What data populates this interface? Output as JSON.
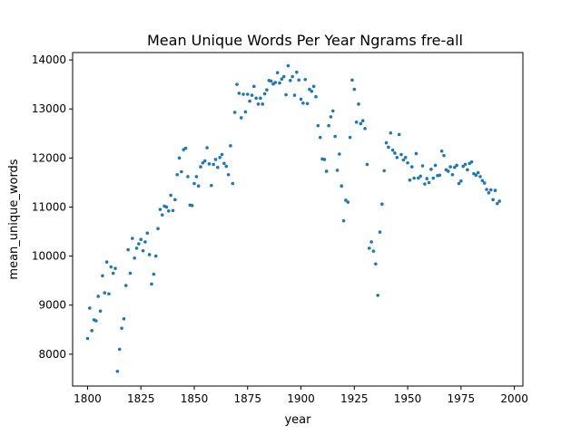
{
  "chart_data": {
    "type": "scatter",
    "title": "Mean Unique Words Per Year Ngrams fre-all",
    "xlabel": "year",
    "ylabel": "mean_unique_words",
    "xlim": [
      1793,
      2004
    ],
    "ylim": [
      7350,
      14150
    ],
    "xticks": [
      1800,
      1825,
      1850,
      1875,
      1900,
      1925,
      1950,
      1975,
      2000
    ],
    "yticks": [
      8000,
      9000,
      10000,
      11000,
      12000,
      13000,
      14000
    ],
    "grid": false,
    "marker_color": "#1f77b4",
    "points": [
      [
        1800,
        8320
      ],
      [
        1801,
        8940
      ],
      [
        1802,
        8480
      ],
      [
        1803,
        8700
      ],
      [
        1804,
        8680
      ],
      [
        1805,
        9180
      ],
      [
        1806,
        8880
      ],
      [
        1807,
        9600
      ],
      [
        1808,
        9250
      ],
      [
        1809,
        9880
      ],
      [
        1810,
        9230
      ],
      [
        1811,
        9780
      ],
      [
        1812,
        9650
      ],
      [
        1813,
        9750
      ],
      [
        1814,
        7650
      ],
      [
        1815,
        8100
      ],
      [
        1816,
        8530
      ],
      [
        1817,
        8720
      ],
      [
        1818,
        9400
      ],
      [
        1819,
        10130
      ],
      [
        1820,
        9650
      ],
      [
        1821,
        10360
      ],
      [
        1822,
        9960
      ],
      [
        1823,
        10160
      ],
      [
        1824,
        10250
      ],
      [
        1825,
        10340
      ],
      [
        1826,
        10110
      ],
      [
        1827,
        10290
      ],
      [
        1828,
        10470
      ],
      [
        1829,
        10030
      ],
      [
        1830,
        9430
      ],
      [
        1831,
        9630
      ],
      [
        1832,
        10000
      ],
      [
        1833,
        10560
      ],
      [
        1834,
        10950
      ],
      [
        1835,
        10840
      ],
      [
        1836,
        11020
      ],
      [
        1837,
        11000
      ],
      [
        1838,
        10920
      ],
      [
        1839,
        11240
      ],
      [
        1840,
        10930
      ],
      [
        1841,
        11150
      ],
      [
        1842,
        11660
      ],
      [
        1843,
        12000
      ],
      [
        1844,
        11720
      ],
      [
        1845,
        12170
      ],
      [
        1846,
        12200
      ],
      [
        1847,
        11620
      ],
      [
        1848,
        11040
      ],
      [
        1849,
        11030
      ],
      [
        1850,
        11480
      ],
      [
        1851,
        11620
      ],
      [
        1852,
        11430
      ],
      [
        1853,
        11820
      ],
      [
        1854,
        11900
      ],
      [
        1855,
        11940
      ],
      [
        1856,
        12210
      ],
      [
        1857,
        11880
      ],
      [
        1858,
        11440
      ],
      [
        1859,
        11870
      ],
      [
        1860,
        11970
      ],
      [
        1861,
        11810
      ],
      [
        1862,
        12010
      ],
      [
        1863,
        12070
      ],
      [
        1864,
        11890
      ],
      [
        1865,
        11830
      ],
      [
        1866,
        11660
      ],
      [
        1867,
        12250
      ],
      [
        1868,
        11480
      ],
      [
        1869,
        12930
      ],
      [
        1870,
        13500
      ],
      [
        1871,
        13320
      ],
      [
        1872,
        12820
      ],
      [
        1873,
        13300
      ],
      [
        1874,
        12940
      ],
      [
        1875,
        13300
      ],
      [
        1876,
        13160
      ],
      [
        1877,
        13280
      ],
      [
        1878,
        13460
      ],
      [
        1879,
        13220
      ],
      [
        1880,
        13100
      ],
      [
        1881,
        13220
      ],
      [
        1882,
        13100
      ],
      [
        1883,
        13310
      ],
      [
        1884,
        13390
      ],
      [
        1885,
        13580
      ],
      [
        1886,
        13570
      ],
      [
        1887,
        13510
      ],
      [
        1888,
        13540
      ],
      [
        1889,
        13740
      ],
      [
        1890,
        13530
      ],
      [
        1891,
        13610
      ],
      [
        1892,
        13660
      ],
      [
        1893,
        13290
      ],
      [
        1894,
        13880
      ],
      [
        1895,
        13580
      ],
      [
        1896,
        13660
      ],
      [
        1897,
        13280
      ],
      [
        1898,
        13750
      ],
      [
        1899,
        13590
      ],
      [
        1900,
        13200
      ],
      [
        1901,
        13120
      ],
      [
        1902,
        13600
      ],
      [
        1903,
        13110
      ],
      [
        1904,
        13400
      ],
      [
        1905,
        13360
      ],
      [
        1906,
        13460
      ],
      [
        1907,
        13250
      ],
      [
        1908,
        12660
      ],
      [
        1909,
        12420
      ],
      [
        1910,
        11980
      ],
      [
        1911,
        11970
      ],
      [
        1912,
        11730
      ],
      [
        1913,
        12660
      ],
      [
        1914,
        12840
      ],
      [
        1915,
        12960
      ],
      [
        1916,
        12440
      ],
      [
        1917,
        11750
      ],
      [
        1918,
        12080
      ],
      [
        1919,
        11430
      ],
      [
        1920,
        10720
      ],
      [
        1921,
        11140
      ],
      [
        1922,
        11100
      ],
      [
        1923,
        12420
      ],
      [
        1924,
        13590
      ],
      [
        1925,
        13400
      ],
      [
        1926,
        12730
      ],
      [
        1927,
        13100
      ],
      [
        1928,
        12700
      ],
      [
        1929,
        12760
      ],
      [
        1930,
        12600
      ],
      [
        1931,
        11870
      ],
      [
        1932,
        10160
      ],
      [
        1933,
        10290
      ],
      [
        1934,
        10100
      ],
      [
        1935,
        9840
      ],
      [
        1936,
        9200
      ],
      [
        1937,
        10490
      ],
      [
        1938,
        11060
      ],
      [
        1939,
        11740
      ],
      [
        1940,
        12310
      ],
      [
        1941,
        12220
      ],
      [
        1942,
        12510
      ],
      [
        1943,
        12160
      ],
      [
        1944,
        12100
      ],
      [
        1945,
        12010
      ],
      [
        1946,
        12480
      ],
      [
        1947,
        12070
      ],
      [
        1948,
        11960
      ],
      [
        1949,
        12010
      ],
      [
        1950,
        11900
      ],
      [
        1951,
        11550
      ],
      [
        1952,
        11820
      ],
      [
        1953,
        11590
      ],
      [
        1954,
        12090
      ],
      [
        1955,
        11590
      ],
      [
        1956,
        11630
      ],
      [
        1957,
        11840
      ],
      [
        1958,
        11470
      ],
      [
        1959,
        11580
      ],
      [
        1960,
        11500
      ],
      [
        1961,
        11770
      ],
      [
        1962,
        11590
      ],
      [
        1963,
        11850
      ],
      [
        1964,
        11640
      ],
      [
        1965,
        11650
      ],
      [
        1966,
        12140
      ],
      [
        1967,
        12050
      ],
      [
        1968,
        11760
      ],
      [
        1969,
        11730
      ],
      [
        1970,
        11820
      ],
      [
        1971,
        11660
      ],
      [
        1972,
        11810
      ],
      [
        1973,
        11850
      ],
      [
        1974,
        11480
      ],
      [
        1975,
        11530
      ],
      [
        1976,
        11830
      ],
      [
        1977,
        11870
      ],
      [
        1978,
        11760
      ],
      [
        1979,
        11890
      ],
      [
        1980,
        11920
      ],
      [
        1981,
        11680
      ],
      [
        1982,
        11650
      ],
      [
        1983,
        11700
      ],
      [
        1984,
        11620
      ],
      [
        1985,
        11540
      ],
      [
        1986,
        11490
      ],
      [
        1987,
        11360
      ],
      [
        1988,
        11290
      ],
      [
        1989,
        11350
      ],
      [
        1990,
        11150
      ],
      [
        1991,
        11340
      ],
      [
        1992,
        11070
      ],
      [
        1993,
        11120
      ]
    ]
  }
}
